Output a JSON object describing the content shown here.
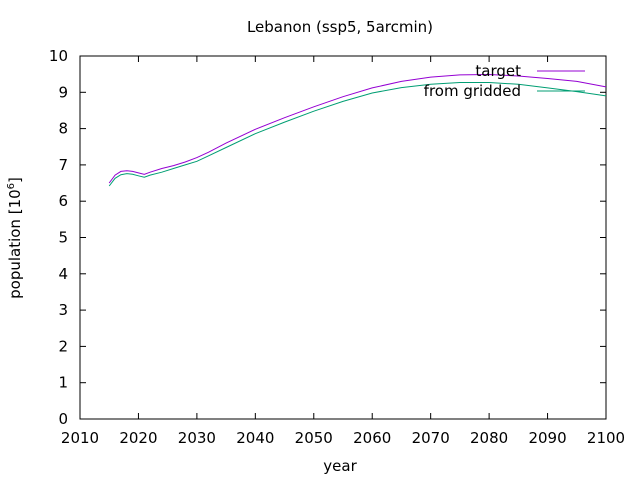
{
  "chart_data": {
    "type": "line",
    "title": "Lebanon (ssp5, 5arcmin)",
    "xlabel": "year",
    "ylabel_main": "population [10",
    "ylabel_exp": "6",
    "ylabel_close": "]",
    "xlim": [
      2010,
      2100
    ],
    "ylim": [
      0,
      10
    ],
    "xticks": [
      "2010",
      "2020",
      "2030",
      "2040",
      "2050",
      "2060",
      "2070",
      "2080",
      "2090",
      "2100"
    ],
    "yticks": [
      "0",
      "1",
      "2",
      "3",
      "4",
      "5",
      "6",
      "7",
      "8",
      "9",
      "10"
    ],
    "grid": false,
    "legend_position": "top-right",
    "series": [
      {
        "name": "target",
        "color": "#9400d3",
        "x": [
          2015,
          2016,
          2017,
          2018,
          2019,
          2020,
          2021,
          2022,
          2024,
          2026,
          2028,
          2030,
          2032,
          2035,
          2040,
          2045,
          2050,
          2055,
          2060,
          2065,
          2070,
          2075,
          2080,
          2085,
          2090,
          2095,
          2100
        ],
        "y": [
          6.5,
          6.72,
          6.82,
          6.84,
          6.82,
          6.78,
          6.74,
          6.8,
          6.9,
          6.98,
          7.08,
          7.2,
          7.35,
          7.6,
          7.98,
          8.3,
          8.6,
          8.88,
          9.12,
          9.3,
          9.42,
          9.48,
          9.49,
          9.45,
          9.38,
          9.3,
          9.15
        ]
      },
      {
        "name": "from gridded",
        "color": "#009e73",
        "x": [
          2015,
          2016,
          2017,
          2018,
          2019,
          2020,
          2021,
          2022,
          2024,
          2026,
          2028,
          2030,
          2032,
          2035,
          2040,
          2045,
          2050,
          2055,
          2060,
          2065,
          2070,
          2075,
          2080,
          2085,
          2090,
          2095,
          2100
        ],
        "y": [
          6.42,
          6.63,
          6.73,
          6.76,
          6.74,
          6.7,
          6.66,
          6.72,
          6.8,
          6.9,
          7.0,
          7.1,
          7.25,
          7.48,
          7.86,
          8.18,
          8.48,
          8.75,
          8.98,
          9.13,
          9.22,
          9.27,
          9.27,
          9.22,
          9.12,
          9.02,
          8.9
        ]
      }
    ]
  }
}
